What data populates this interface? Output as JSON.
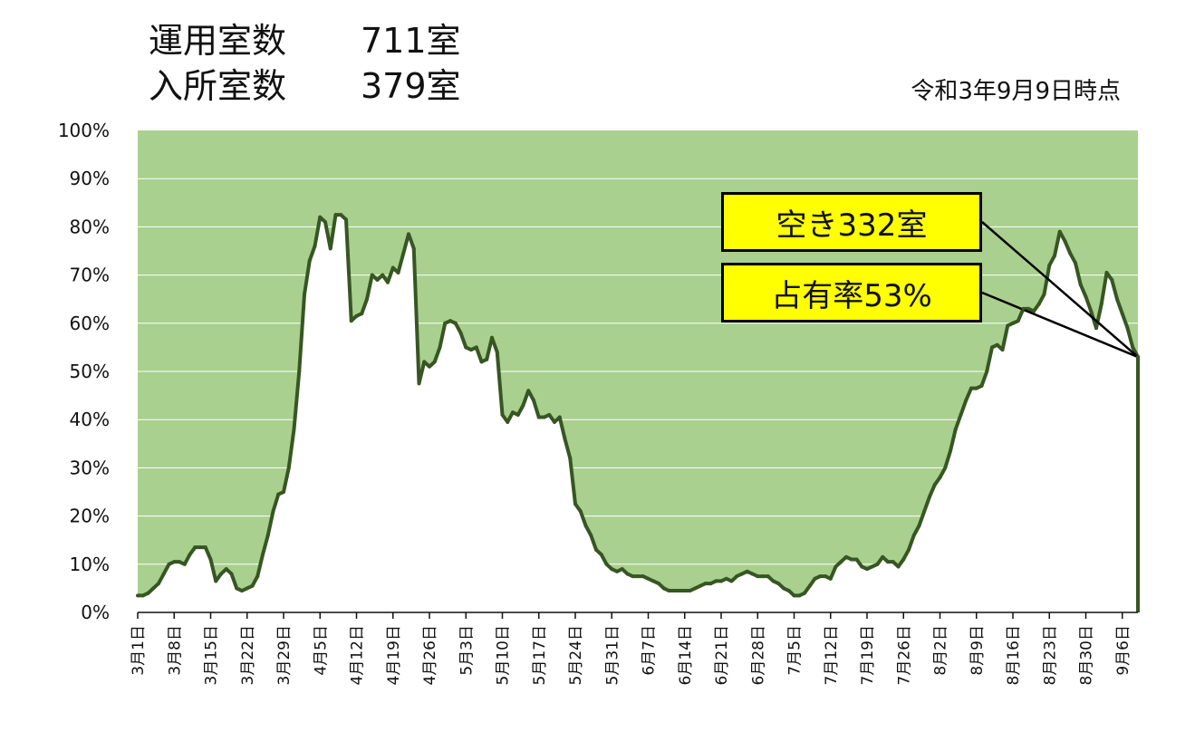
{
  "header": {
    "operating_label": "運用室数",
    "operating_value": "711室",
    "occupied_label": "入所室数",
    "occupied_value": "379室",
    "as_of": "令和3年9月9日時点"
  },
  "callouts": {
    "vacant": "空き332室",
    "occupancy": "占有率53%"
  },
  "colors": {
    "plot_fill": "#a9d08e",
    "line": "#375623",
    "callout_bg": "#ffff00",
    "callout_border": "#000000",
    "gridline": "#ffffff"
  },
  "chart_data": {
    "type": "area",
    "title": "",
    "xlabel": "",
    "ylabel": "",
    "ylim": [
      0,
      100
    ],
    "y_unit": "%",
    "grid": true,
    "y_ticks": [
      "0%",
      "10%",
      "20%",
      "30%",
      "40%",
      "50%",
      "60%",
      "70%",
      "80%",
      "90%",
      "100%"
    ],
    "x_ticks": [
      "3月1日",
      "3月8日",
      "3月15日",
      "3月22日",
      "3月29日",
      "4月5日",
      "4月12日",
      "4月19日",
      "4月26日",
      "5月3日",
      "5月10日",
      "5月17日",
      "5月24日",
      "5月31日",
      "6月7日",
      "6月14日",
      "6月21日",
      "6月28日",
      "7月5日",
      "7月12日",
      "7月19日",
      "7月26日",
      "8月2日",
      "8月9日",
      "8月16日",
      "8月23日",
      "8月30日",
      "9月6日"
    ],
    "x_start": "3月1日",
    "x_end": "9月9日",
    "series": [
      {
        "name": "",
        "points": [
          [
            "3月1日",
            3.5
          ],
          [
            "3月2日",
            3.5
          ],
          [
            "3月3日",
            4
          ],
          [
            "3月4日",
            5
          ],
          [
            "3月5日",
            6
          ],
          [
            "3月6日",
            8
          ],
          [
            "3月7日",
            10
          ],
          [
            "3月8日",
            10.5
          ],
          [
            "3月9日",
            10.5
          ],
          [
            "3月10日",
            10
          ],
          [
            "3月11日",
            12
          ],
          [
            "3月12日",
            13.5
          ],
          [
            "3月13日",
            13.5
          ],
          [
            "3月14日",
            13.5
          ],
          [
            "3月15日",
            11
          ],
          [
            "3月16日",
            6.5
          ],
          [
            "3月17日",
            8
          ],
          [
            "3月18日",
            9
          ],
          [
            "3月19日",
            8
          ],
          [
            "3月20日",
            5
          ],
          [
            "3月21日",
            4.5
          ],
          [
            "3月22日",
            5
          ],
          [
            "3月23日",
            5.5
          ],
          [
            "3月24日",
            7.5
          ],
          [
            "3月25日",
            12
          ],
          [
            "3月26日",
            16
          ],
          [
            "3月27日",
            21
          ],
          [
            "3月28日",
            24.5
          ],
          [
            "3月29日",
            25
          ],
          [
            "3月30日",
            30
          ],
          [
            "3月31日",
            38
          ],
          [
            "4月1日",
            50
          ],
          [
            "4月2日",
            66
          ],
          [
            "4月3日",
            73
          ],
          [
            "4月4日",
            76
          ],
          [
            "4月5日",
            82
          ],
          [
            "4月6日",
            81
          ],
          [
            "4月7日",
            75.5
          ],
          [
            "4月8日",
            82.5
          ],
          [
            "4月9日",
            82.5
          ],
          [
            "4月10日",
            81.5
          ],
          [
            "4月11日",
            60.5
          ],
          [
            "4月12日",
            61.5
          ],
          [
            "4月13日",
            62
          ],
          [
            "4月14日",
            65
          ],
          [
            "4月15日",
            70
          ],
          [
            "4月16日",
            69
          ],
          [
            "4月17日",
            70
          ],
          [
            "4月18日",
            68.5
          ],
          [
            "4月19日",
            71.5
          ],
          [
            "4月20日",
            70.5
          ],
          [
            "4月21日",
            74.5
          ],
          [
            "4月22日",
            78.5
          ],
          [
            "4月23日",
            75.5
          ],
          [
            "4月24日",
            47.5
          ],
          [
            "4月25日",
            52
          ],
          [
            "4月26日",
            51
          ],
          [
            "4月27日",
            52
          ],
          [
            "4月28日",
            55
          ],
          [
            "4月29日",
            60
          ],
          [
            "4月30日",
            60.5
          ],
          [
            "5月1日",
            60
          ],
          [
            "5月2日",
            58
          ],
          [
            "5月3日",
            55
          ],
          [
            "5月4日",
            54.5
          ],
          [
            "5月5日",
            55
          ],
          [
            "5月6日",
            52
          ],
          [
            "5月7日",
            52.5
          ],
          [
            "5月8日",
            57
          ],
          [
            "5月9日",
            54
          ],
          [
            "5月10日",
            41
          ],
          [
            "5月11日",
            39.5
          ],
          [
            "5月12日",
            41.5
          ],
          [
            "5月13日",
            41
          ],
          [
            "5月14日",
            43
          ],
          [
            "5月15日",
            46
          ],
          [
            "5月16日",
            44
          ],
          [
            "5月17日",
            40.5
          ],
          [
            "5月18日",
            40.5
          ],
          [
            "5月19日",
            41
          ],
          [
            "5月20日",
            39.5
          ],
          [
            "5月21日",
            40.5
          ],
          [
            "5月22日",
            36
          ],
          [
            "5月23日",
            32
          ],
          [
            "5月24日",
            22.5
          ],
          [
            "5月25日",
            21
          ],
          [
            "5月26日",
            18
          ],
          [
            "5月27日",
            16
          ],
          [
            "5月28日",
            13
          ],
          [
            "5月29日",
            12
          ],
          [
            "5月30日",
            10
          ],
          [
            "5月31日",
            9
          ],
          [
            "6月1日",
            8.5
          ],
          [
            "6月2日",
            9
          ],
          [
            "6月3日",
            8
          ],
          [
            "6月4日",
            7.5
          ],
          [
            "6月5日",
            7.5
          ],
          [
            "6月6日",
            7.5
          ],
          [
            "6月7日",
            7
          ],
          [
            "6月8日",
            6.5
          ],
          [
            "6月9日",
            6
          ],
          [
            "6月10日",
            5
          ],
          [
            "6月11日",
            4.5
          ],
          [
            "6月12日",
            4.5
          ],
          [
            "6月13日",
            4.5
          ],
          [
            "6月14日",
            4.5
          ],
          [
            "6月15日",
            4.5
          ],
          [
            "6月16日",
            5
          ],
          [
            "6月17日",
            5.5
          ],
          [
            "6月18日",
            6
          ],
          [
            "6月19日",
            6
          ],
          [
            "6月20日",
            6.5
          ],
          [
            "6月21日",
            6.5
          ],
          [
            "6月22日",
            7
          ],
          [
            "6月23日",
            6.5
          ],
          [
            "6月24日",
            7.5
          ],
          [
            "6月25日",
            8
          ],
          [
            "6月26日",
            8.5
          ],
          [
            "6月27日",
            8
          ],
          [
            "6月28日",
            7.5
          ],
          [
            "6月29日",
            7.5
          ],
          [
            "6月30日",
            7.5
          ],
          [
            "7月1日",
            6.5
          ],
          [
            "7月2日",
            6
          ],
          [
            "7月3日",
            5
          ],
          [
            "7月4日",
            4.5
          ],
          [
            "7月5日",
            3.5
          ],
          [
            "7月6日",
            3.5
          ],
          [
            "7月7日",
            4
          ],
          [
            "7月8日",
            5.5
          ],
          [
            "7月9日",
            7
          ],
          [
            "7月10日",
            7.5
          ],
          [
            "7月11日",
            7.5
          ],
          [
            "7月12日",
            7
          ],
          [
            "7月13日",
            9.5
          ],
          [
            "7月14日",
            10.5
          ],
          [
            "7月15日",
            11.5
          ],
          [
            "7月16日",
            11
          ],
          [
            "7月17日",
            11
          ],
          [
            "7月18日",
            9.5
          ],
          [
            "7月19日",
            9
          ],
          [
            "7月20日",
            9.5
          ],
          [
            "7月21日",
            10
          ],
          [
            "7月22日",
            11.5
          ],
          [
            "7月23日",
            10.5
          ],
          [
            "7月24日",
            10.5
          ],
          [
            "7月25日",
            9.5
          ],
          [
            "7月26日",
            11
          ],
          [
            "7月27日",
            13
          ],
          [
            "7月28日",
            16
          ],
          [
            "7月29日",
            18
          ],
          [
            "7月30日",
            21
          ],
          [
            "7月31日",
            24
          ],
          [
            "8月1日",
            26.5
          ],
          [
            "8月2日",
            28
          ],
          [
            "8月3日",
            30
          ],
          [
            "8月4日",
            33.5
          ],
          [
            "8月5日",
            38
          ],
          [
            "8月6日",
            41
          ],
          [
            "8月7日",
            44
          ],
          [
            "8月8日",
            46.5
          ],
          [
            "8月9日",
            46.5
          ],
          [
            "8月10日",
            47
          ],
          [
            "8月11日",
            50
          ],
          [
            "8月12日",
            55
          ],
          [
            "8月13日",
            55.5
          ],
          [
            "8月14日",
            54.5
          ],
          [
            "8月15日",
            59.5
          ],
          [
            "8月16日",
            60
          ],
          [
            "8月17日",
            60.5
          ],
          [
            "8月18日",
            63
          ],
          [
            "8月19日",
            63
          ],
          [
            "8月20日",
            62.5
          ],
          [
            "8月21日",
            64
          ],
          [
            "8月22日",
            66
          ],
          [
            "8月23日",
            72
          ],
          [
            "8月24日",
            74
          ],
          [
            "8月25日",
            79
          ],
          [
            "8月26日",
            77
          ],
          [
            "8月27日",
            74.5
          ],
          [
            "8月28日",
            72.5
          ],
          [
            "8月29日",
            68
          ],
          [
            "8月30日",
            65.5
          ],
          [
            "8月31日",
            62.5
          ],
          [
            "9月1日",
            59
          ],
          [
            "9月2日",
            64
          ],
          [
            "9月3日",
            70.5
          ],
          [
            "9月4日",
            69
          ],
          [
            "9月5日",
            65
          ],
          [
            "9月6日",
            62
          ],
          [
            "9月7日",
            59
          ],
          [
            "9月8日",
            55
          ],
          [
            "9月9日",
            53
          ]
        ]
      }
    ]
  }
}
